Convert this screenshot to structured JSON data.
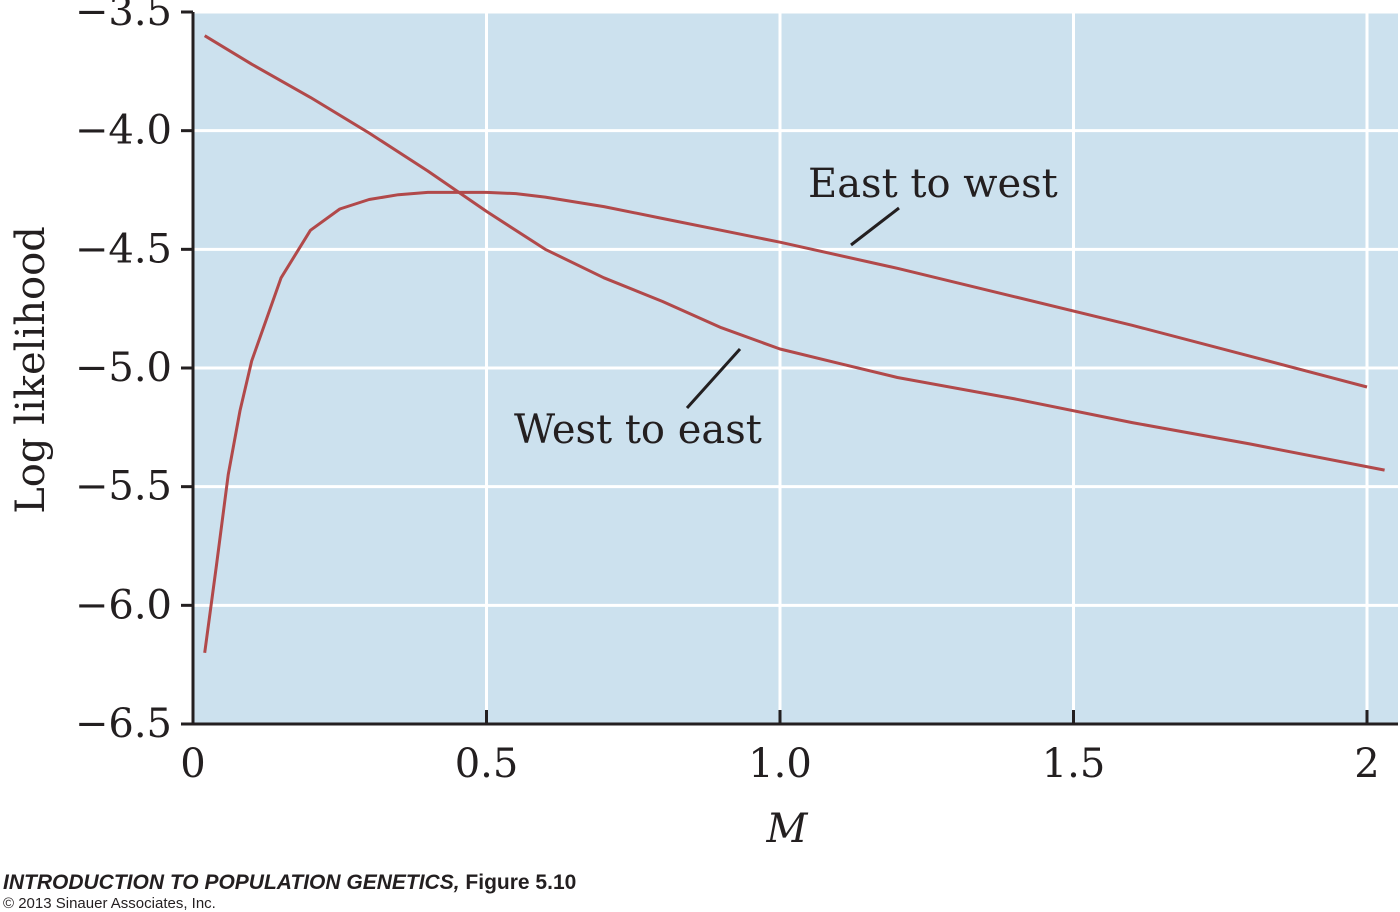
{
  "chart_data": {
    "type": "line",
    "xlabel": "M",
    "ylabel": "Log likelihood",
    "xlim": [
      0,
      2.03
    ],
    "ylim": [
      -6.5,
      -3.5
    ],
    "x_ticks": [
      0,
      0.5,
      1.0,
      1.5,
      2
    ],
    "x_tick_labels": [
      "0",
      "0.5",
      "1.0",
      "1.5",
      "2"
    ],
    "y_ticks": [
      -3.5,
      -4.0,
      -4.5,
      -5.0,
      -5.5,
      -6.0,
      -6.5
    ],
    "y_tick_labels": [
      "−3.5",
      "−4.0",
      "−4.5",
      "−5.0",
      "−5.5",
      "−6.0",
      "−6.5"
    ],
    "grid": true,
    "background_color": "#cce1ee",
    "grid_color": "#ffffff",
    "line_color": "#b1494a",
    "series": [
      {
        "name": "East to west",
        "x": [
          0.02,
          0.04,
          0.06,
          0.08,
          0.1,
          0.15,
          0.2,
          0.25,
          0.3,
          0.35,
          0.4,
          0.45,
          0.5,
          0.55,
          0.6,
          0.7,
          0.8,
          0.9,
          1.0,
          1.2,
          1.4,
          1.6,
          1.8,
          2.0
        ],
        "y": [
          -6.2,
          -5.83,
          -5.45,
          -5.18,
          -4.97,
          -4.62,
          -4.42,
          -4.33,
          -4.29,
          -4.27,
          -4.26,
          -4.26,
          -4.26,
          -4.265,
          -4.28,
          -4.32,
          -4.37,
          -4.42,
          -4.47,
          -4.58,
          -4.7,
          -4.82,
          -4.95,
          -5.08
        ]
      },
      {
        "name": "West to east",
        "x": [
          0.02,
          0.1,
          0.2,
          0.3,
          0.4,
          0.5,
          0.6,
          0.7,
          0.8,
          0.9,
          1.0,
          1.1,
          1.2,
          1.4,
          1.6,
          1.8,
          2.03
        ],
        "y": [
          -3.6,
          -3.72,
          -3.86,
          -4.01,
          -4.17,
          -4.34,
          -4.5,
          -4.62,
          -4.72,
          -4.83,
          -4.92,
          -4.98,
          -5.04,
          -5.13,
          -5.23,
          -5.32,
          -5.43
        ]
      }
    ],
    "annotations": [
      {
        "text": "East to west",
        "series": "East to west"
      },
      {
        "text": "West to east",
        "series": "West to east"
      }
    ]
  },
  "caption": {
    "book_title": "INTRODUCTION TO POPULATION GENETICS,",
    "figure": "Figure 5.10",
    "copyright": "© 2013 Sinauer Associates, Inc."
  }
}
